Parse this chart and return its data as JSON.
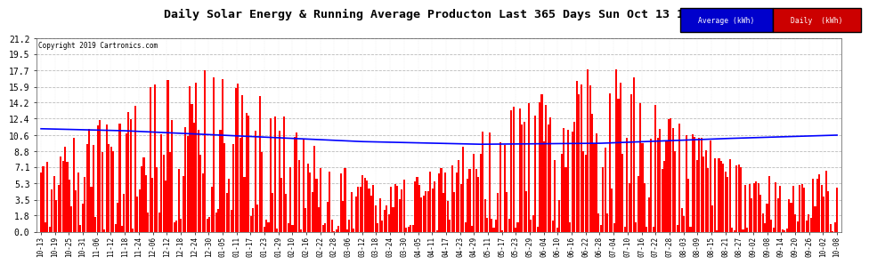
{
  "title": "Daily Solar Energy & Running Average Producton Last 365 Days Sun Oct 13 18:16",
  "copyright": "Copyright 2019 Cartronics.com",
  "background_color": "#ffffff",
  "plot_bg_color": "#ffffff",
  "bar_color": "#ff0000",
  "avg_line_color": "#0000ff",
  "grid_color": "#bbbbbb",
  "ylim": [
    0.0,
    21.2
  ],
  "yticks": [
    0.0,
    1.8,
    3.5,
    5.3,
    7.1,
    8.8,
    10.6,
    12.4,
    14.2,
    15.9,
    17.7,
    19.5,
    21.2
  ],
  "legend_avg_color": "#0000cc",
  "legend_daily_color": "#cc0000",
  "n_days": 365,
  "xtick_labels": [
    "10-13",
    "10-19",
    "10-25",
    "10-31",
    "11-06",
    "11-12",
    "11-18",
    "11-24",
    "12-06",
    "12-12",
    "12-18",
    "12-24",
    "12-30",
    "01-05",
    "01-11",
    "01-17",
    "01-23",
    "01-29",
    "02-10",
    "02-16",
    "02-22",
    "02-28",
    "03-06",
    "03-12",
    "03-18",
    "03-24",
    "03-30",
    "04-05",
    "04-11",
    "04-17",
    "04-23",
    "04-29",
    "05-11",
    "05-17",
    "05-23",
    "05-29",
    "06-04",
    "06-10",
    "06-16",
    "06-22",
    "06-28",
    "07-04",
    "07-10",
    "07-16",
    "07-22",
    "07-28",
    "08-03",
    "08-09",
    "08-15",
    "08-21",
    "08-27",
    "09-02",
    "09-08",
    "09-14",
    "09-20",
    "09-26",
    "10-02",
    "10-08"
  ],
  "avg_ctrl_x": [
    0.0,
    0.1,
    0.25,
    0.4,
    0.55,
    0.7,
    0.85,
    1.0
  ],
  "avg_ctrl_y": [
    11.3,
    11.1,
    10.5,
    9.9,
    9.6,
    9.7,
    10.2,
    10.6
  ]
}
